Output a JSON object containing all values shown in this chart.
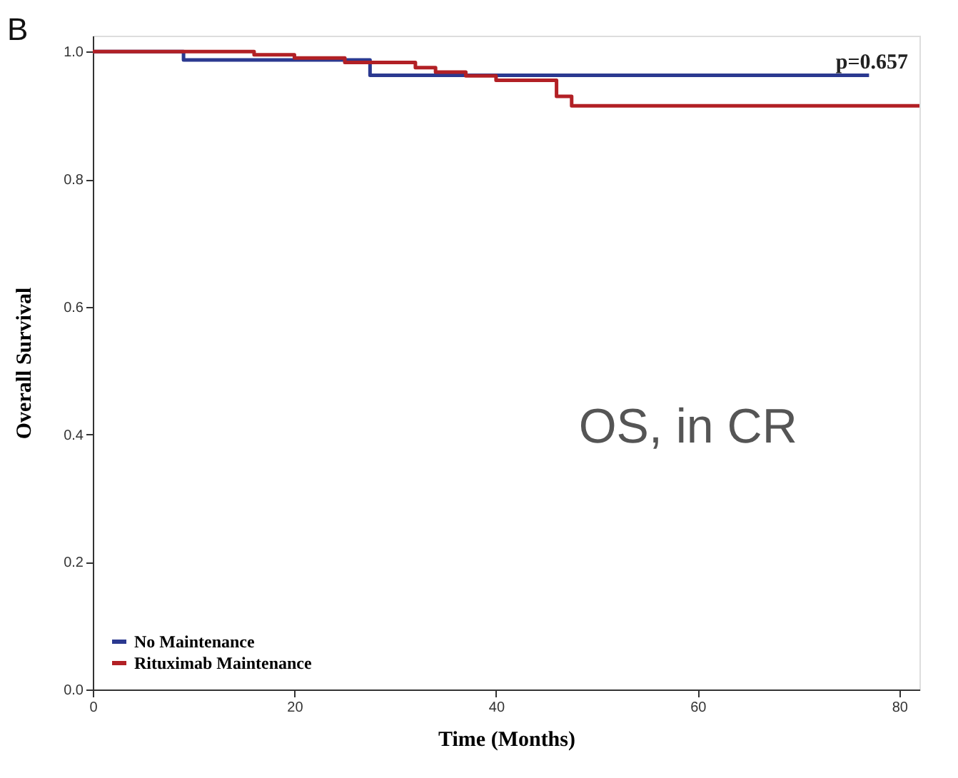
{
  "chart_data": {
    "type": "step",
    "xlabel": "Time (Months)",
    "ylabel": "Overall Survival",
    "annotations": [
      "B",
      "p=0.657",
      "OS, in CR"
    ],
    "series": [
      {
        "name": "No Maintenance",
        "color": "#2b3990",
        "x": [
          0,
          9,
          27.5,
          77
        ],
        "values": [
          1,
          0.987,
          0.963,
          0.963
        ]
      },
      {
        "name": "Rituximab Maintenance",
        "color": "#b22025",
        "x": [
          0,
          16,
          20,
          25,
          32,
          34,
          37,
          40,
          46,
          47.5,
          82
        ],
        "values": [
          1,
          0.995,
          0.99,
          0.983,
          0.975,
          0.968,
          0.962,
          0.955,
          0.93,
          0.915,
          0.915
        ]
      }
    ],
    "xlim": [
      0,
      82
    ],
    "xticks": [
      0,
      20,
      40,
      60,
      80
    ],
    "ylim": [
      0,
      1.025
    ],
    "yticks": [
      {
        "value": 0,
        "label": "0.0"
      },
      {
        "value": 0.2,
        "label": "0.2"
      },
      {
        "value": 0.4,
        "label": "0.4"
      },
      {
        "value": 0.6,
        "label": "0.6"
      },
      {
        "value": 0.8,
        "label": "0.8"
      },
      {
        "value": 1,
        "label": "1.0"
      }
    ],
    "legend": "bottom left",
    "grid": false
  }
}
